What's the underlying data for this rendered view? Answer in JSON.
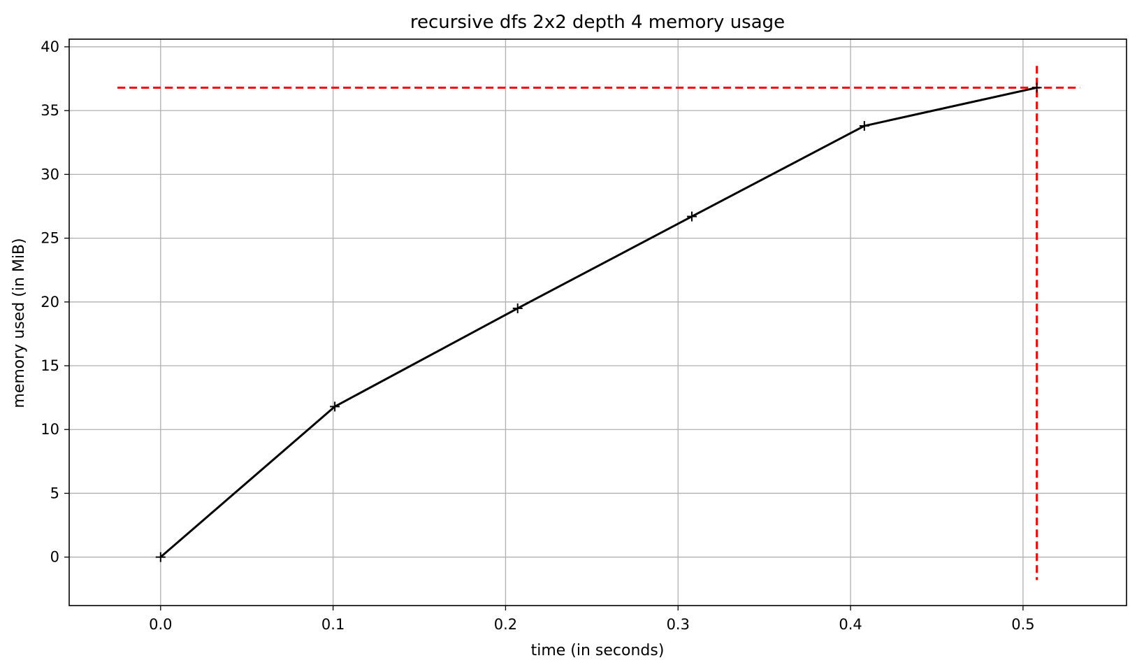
{
  "chart_data": {
    "type": "line",
    "title": "recursive dfs 2x2 depth 4 memory usage",
    "xlabel": "time (in seconds)",
    "ylabel": "memory used (in MiB)",
    "xlim": [
      -0.053,
      0.56
    ],
    "ylim": [
      -3.8,
      40.6
    ],
    "x_ticks": [
      0.0,
      0.1,
      0.2,
      0.3,
      0.4,
      0.5
    ],
    "x_tick_labels": [
      "0.0",
      "0.1",
      "0.2",
      "0.3",
      "0.4",
      "0.5"
    ],
    "y_ticks": [
      0,
      5,
      10,
      15,
      20,
      25,
      30,
      35,
      40
    ],
    "y_tick_labels": [
      "0",
      "5",
      "10",
      "15",
      "20",
      "25",
      "30",
      "35",
      "40"
    ],
    "grid": true,
    "series": [
      {
        "color": "#000000",
        "marker": "plus",
        "x": [
          0.0,
          0.101,
          0.207,
          0.308,
          0.408,
          0.508
        ],
        "y": [
          0.0,
          11.8,
          19.5,
          26.7,
          33.8,
          36.8
        ]
      }
    ],
    "reference_lines": [
      {
        "orientation": "horizontal",
        "y": 36.8,
        "x_range": [
          -0.025,
          0.533
        ],
        "color": "#ff0000",
        "style": "dashed"
      },
      {
        "orientation": "vertical",
        "x": 0.508,
        "y_range": [
          -1.8,
          38.5
        ],
        "color": "#ff0000",
        "style": "dashed"
      }
    ]
  }
}
